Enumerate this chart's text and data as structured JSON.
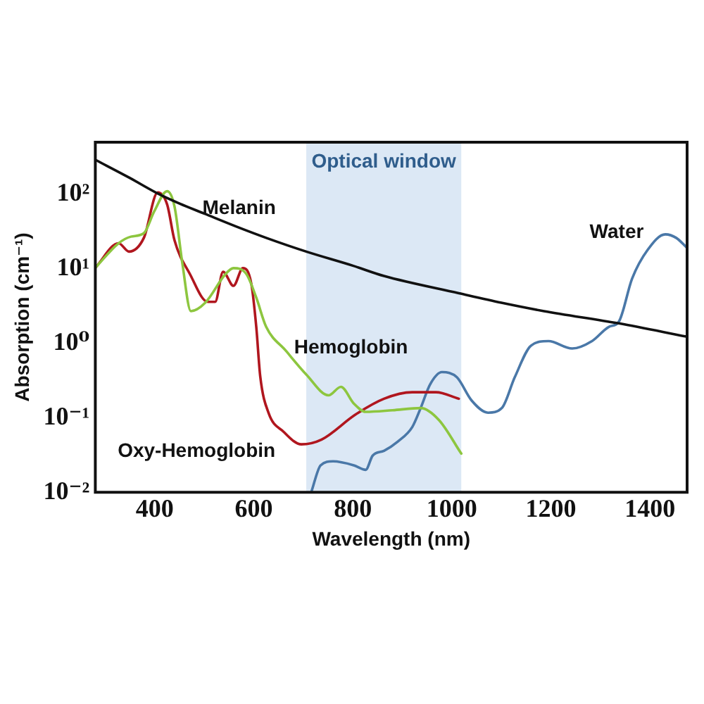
{
  "chart_data": {
    "type": "line",
    "xlabel": "Wavelength (nm)",
    "ylabel": "Absorption (cm⁻¹)",
    "xlim": [
      280,
      1475
    ],
    "xticks": [
      400,
      600,
      800,
      1000,
      1200,
      1400
    ],
    "ylim": [
      0.01,
      500
    ],
    "yticks": [
      {
        "value": 0.01,
        "label": "10⁻²"
      },
      {
        "value": 0.1,
        "label": "10⁻¹"
      },
      {
        "value": 1,
        "label": "10⁰"
      },
      {
        "value": 10,
        "label": "10¹"
      },
      {
        "value": 100,
        "label": "10²"
      }
    ],
    "log": "y",
    "bands": [
      {
        "axis": "x",
        "from": 706,
        "to": 1019,
        "label": "Optical window",
        "color": "#dce8f5"
      }
    ],
    "series": [
      {
        "name": "Melanin",
        "color": "#111111",
        "x": [
          280,
          350,
          409,
          450,
          500,
          564,
          625,
          706,
          800,
          863,
          1014,
          1100,
          1186,
          1337,
          1473
        ],
        "values": [
          290,
          165,
          100,
          75,
          55,
          37,
          26,
          17,
          11,
          8,
          4.7,
          3.5,
          2.7,
          1.85,
          1.23
        ]
      },
      {
        "name": "Hemoglobin",
        "color": "#8dc63f",
        "x": [
          280,
          327,
          352,
          378,
          399,
          425,
          440,
          456,
          473,
          502,
          543,
          559,
          585,
          605,
          625,
          665,
          706,
          751,
          776,
          802,
          826,
          880,
          937,
          974,
          1019
        ],
        "values": [
          10.3,
          22,
          27,
          30,
          59,
          110,
          68,
          11.5,
          2.7,
          3.5,
          8.5,
          10.2,
          8.5,
          4.1,
          1.66,
          0.79,
          0.38,
          0.2,
          0.26,
          0.155,
          0.12,
          0.126,
          0.135,
          0.093,
          0.033
        ]
      },
      {
        "name": "Oxy-Hemoglobin",
        "color": "#b0161e",
        "x": [
          280,
          327,
          348,
          378,
          406,
          425,
          440,
          471,
          507,
          522,
          538,
          559,
          578,
          595,
          605,
          613,
          630,
          660,
          696,
          737,
          805,
          863,
          920,
          968,
          1014
        ],
        "values": [
          10.3,
          22,
          17,
          26,
          106,
          73,
          24,
          8.5,
          3.6,
          3.6,
          9.1,
          5.9,
          10.2,
          6.3,
          1.66,
          0.36,
          0.115,
          0.065,
          0.044,
          0.051,
          0.11,
          0.18,
          0.22,
          0.22,
          0.18
        ]
      },
      {
        "name": "Water",
        "color": "#4a78a8",
        "x": [
          716,
          735,
          760,
          802,
          826,
          840,
          863,
          891,
          920,
          937,
          956,
          980,
          1010,
          1040,
          1073,
          1101,
          1127,
          1160,
          1195,
          1243,
          1283,
          1317,
          1337,
          1364,
          1395,
          1431,
          1453,
          1475
        ],
        "values": [
          0.01,
          0.023,
          0.026,
          0.023,
          0.02,
          0.031,
          0.036,
          0.048,
          0.075,
          0.135,
          0.28,
          0.41,
          0.35,
          0.17,
          0.117,
          0.135,
          0.35,
          0.93,
          1.07,
          0.85,
          1.07,
          1.66,
          1.94,
          7.4,
          17.8,
          29,
          26,
          19
        ]
      }
    ]
  }
}
